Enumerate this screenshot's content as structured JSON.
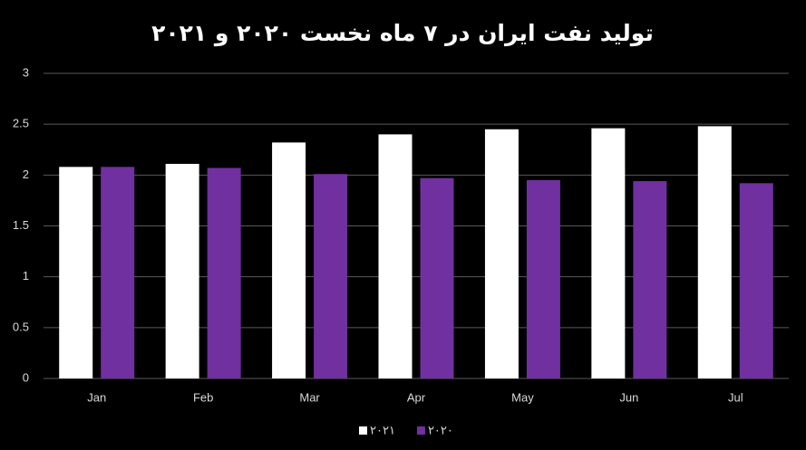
{
  "chart_data": {
    "type": "bar",
    "title": "تولید نفت ایران در ۷ ماه نخست ۲۰۲۰ و ۲۰۲۱",
    "categories": [
      "Jan",
      "Feb",
      "Mar",
      "Apr",
      "May",
      "Jun",
      "Jul"
    ],
    "series": [
      {
        "name": "۲۰۲۱",
        "color": "#ffffff",
        "values": [
          2.08,
          2.11,
          2.32,
          2.4,
          2.45,
          2.46,
          2.48
        ]
      },
      {
        "name": "۲۰۲۰",
        "color": "#7030a0",
        "values": [
          2.08,
          2.07,
          2.01,
          1.97,
          1.95,
          1.94,
          1.92
        ]
      }
    ],
    "ylim": [
      0,
      3
    ],
    "yticks": [
      0,
      0.5,
      1,
      1.5,
      2,
      2.5,
      3
    ],
    "grid": true,
    "legend": "bottom"
  }
}
